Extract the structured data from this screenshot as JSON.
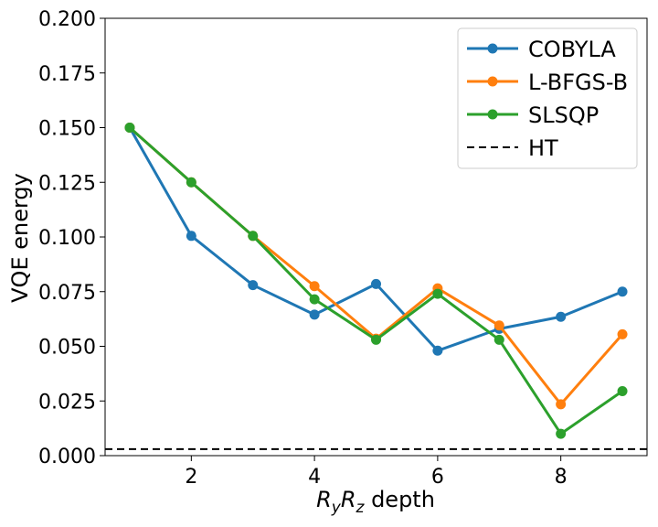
{
  "chart_data": {
    "type": "line",
    "title": "",
    "xlabel": "R_y R_z depth",
    "xlabel_parts": {
      "r1": "R",
      "sub1": "y",
      "r2": "R",
      "sub2": "z",
      "rest": " depth"
    },
    "ylabel": "VQE energy",
    "xlim": [
      0.6,
      9.4
    ],
    "ylim": [
      0.0,
      0.2
    ],
    "xticks": [
      2,
      4,
      6,
      8
    ],
    "xtick_labels": [
      "2",
      "4",
      "6",
      "8"
    ],
    "yticks": [
      0.0,
      0.025,
      0.05,
      0.075,
      0.1,
      0.125,
      0.15,
      0.175,
      0.2
    ],
    "ytick_labels": [
      "0.000",
      "0.025",
      "0.050",
      "0.075",
      "0.100",
      "0.125",
      "0.150",
      "0.175",
      "0.200"
    ],
    "grid": false,
    "legend_position": "top-right",
    "x": [
      1,
      2,
      3,
      4,
      5,
      6,
      7,
      8,
      9
    ],
    "series": [
      {
        "name": "COBYLA",
        "color": "#1f77b4",
        "values": [
          0.15,
          0.1005,
          0.078,
          0.0645,
          0.0785,
          0.048,
          0.058,
          0.0635,
          0.075
        ]
      },
      {
        "name": "L-BFGS-B",
        "color": "#ff7f0e",
        "values": [
          0.15,
          0.125,
          0.1005,
          0.0775,
          0.0535,
          0.0765,
          0.0595,
          0.0235,
          0.0555
        ]
      },
      {
        "name": "SLSQP",
        "color": "#2ca02c",
        "values": [
          0.15,
          0.125,
          0.1005,
          0.0715,
          0.053,
          0.074,
          0.053,
          0.01,
          0.0295
        ]
      }
    ],
    "reference_line": {
      "name": "HT",
      "value": 0.003,
      "color": "#000000",
      "style": "dashed"
    }
  }
}
